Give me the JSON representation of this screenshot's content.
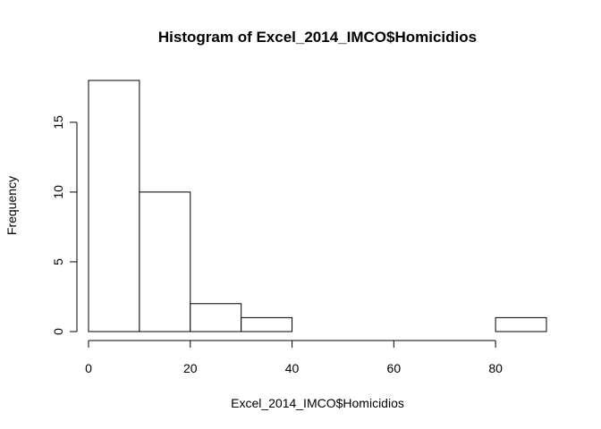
{
  "chart_data": {
    "type": "bar",
    "title": "Histogram of Excel_2014_IMCO$Homicidios",
    "xlabel": "Excel_2014_IMCO$Homicidios",
    "ylabel": "Frequency",
    "bins": [
      {
        "start": 0,
        "end": 10,
        "count": 18
      },
      {
        "start": 10,
        "end": 20,
        "count": 10
      },
      {
        "start": 20,
        "end": 30,
        "count": 2
      },
      {
        "start": 30,
        "end": 40,
        "count": 1
      },
      {
        "start": 40,
        "end": 50,
        "count": 0
      },
      {
        "start": 50,
        "end": 60,
        "count": 0
      },
      {
        "start": 60,
        "end": 70,
        "count": 0
      },
      {
        "start": 70,
        "end": 80,
        "count": 0
      },
      {
        "start": 80,
        "end": 90,
        "count": 1
      }
    ],
    "xticks": [
      "0",
      "20",
      "40",
      "60",
      "80"
    ],
    "yticks": [
      "0",
      "5",
      "10",
      "15"
    ],
    "xlim": [
      0,
      90
    ],
    "ylim": [
      0,
      18
    ],
    "grid": false,
    "colors": {
      "bar_fill": "#ffffff",
      "bar_stroke": "#000000",
      "axis": "#000000"
    }
  }
}
